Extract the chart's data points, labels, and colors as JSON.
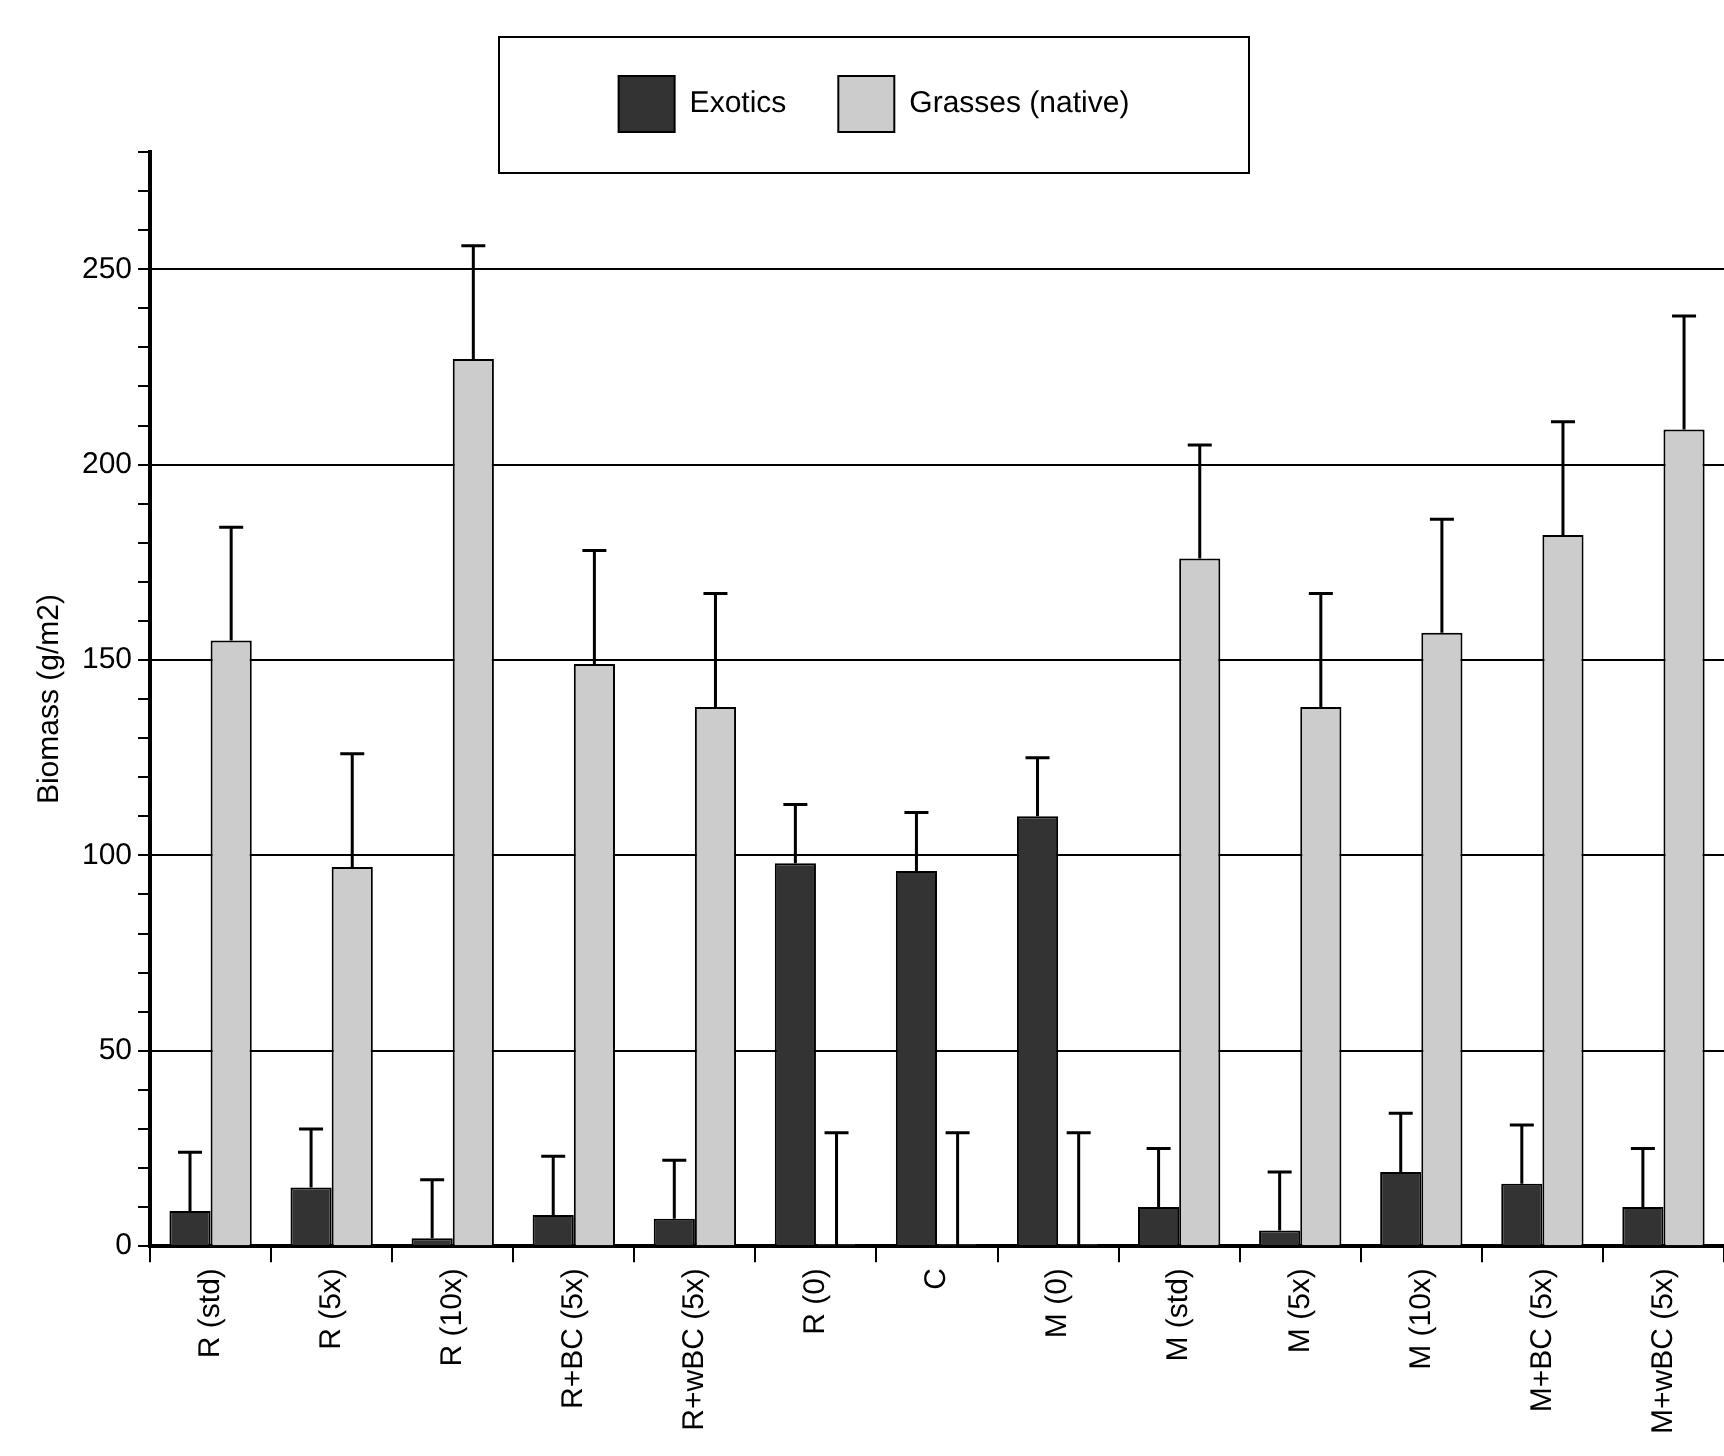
{
  "chart_data": {
    "type": "bar",
    "ylabel": "Biomass (g/m2)",
    "categories": [
      "R (std)",
      "R (5x)",
      "R (10x)",
      "R+BC (5x)",
      "R+wBC (5x)",
      "R (0)",
      "C",
      "M (0)",
      "M (std)",
      "M (5x)",
      "M (10x)",
      "M+BC (5x)",
      "M+wBC (5x)"
    ],
    "series": [
      {
        "name": "Exotics",
        "color": "#333333",
        "values": [
          9,
          15,
          2,
          8,
          7,
          98,
          96,
          110,
          10,
          4,
          19,
          16,
          10
        ],
        "errors": [
          [
            9,
            24
          ],
          [
            15,
            30
          ],
          [
            2,
            17
          ],
          [
            8,
            23
          ],
          [
            7,
            22
          ],
          [
            98,
            113
          ],
          [
            96,
            111
          ],
          [
            110,
            125
          ],
          [
            10,
            25
          ],
          [
            4,
            19
          ],
          [
            19,
            34
          ],
          [
            16,
            31
          ],
          [
            10,
            25
          ]
        ]
      },
      {
        "name": "Grasses (native)",
        "color": "#cccccc",
        "values": [
          155,
          97,
          227,
          149,
          138,
          0,
          0,
          0,
          176,
          138,
          157,
          182,
          209
        ],
        "errors": [
          [
            155,
            184
          ],
          [
            97,
            126
          ],
          [
            227,
            256
          ],
          [
            149,
            178
          ],
          [
            138,
            167
          ],
          [
            0,
            29
          ],
          [
            0,
            29
          ],
          [
            0,
            29
          ],
          [
            176,
            205
          ],
          [
            138,
            167
          ],
          [
            157,
            186
          ],
          [
            182,
            211
          ],
          [
            209,
            238
          ]
        ]
      }
    ],
    "ylim": [
      0,
      280
    ],
    "yticks": [
      0,
      {
        "value": 10,
        "label": null
      },
      {
        "value": 20,
        "label": null
      },
      {
        "value": 30,
        "label": null
      },
      {
        "value": 40,
        "label": null
      },
      50,
      {
        "value": 60,
        "label": null
      },
      {
        "value": 70,
        "label": null
      },
      {
        "value": 80,
        "label": null
      },
      {
        "value": 90,
        "label": null
      },
      100,
      {
        "value": 110,
        "label": null
      },
      {
        "value": 120,
        "label": null
      },
      {
        "value": 130,
        "label": null
      },
      {
        "value": 140,
        "label": null
      },
      150,
      {
        "value": 160,
        "label": null
      },
      {
        "value": 170,
        "label": null
      },
      {
        "value": 180,
        "label": null
      },
      {
        "value": 190,
        "label": null
      },
      200,
      {
        "value": 210,
        "label": null
      },
      {
        "value": 220,
        "label": null
      },
      {
        "value": 230,
        "label": null
      },
      {
        "value": 240,
        "label": null
      },
      250,
      {
        "value": 260,
        "label": null
      },
      {
        "value": 270,
        "label": null
      },
      {
        "value": 280,
        "label": null
      }
    ],
    "grid": "y",
    "legend": "top"
  }
}
